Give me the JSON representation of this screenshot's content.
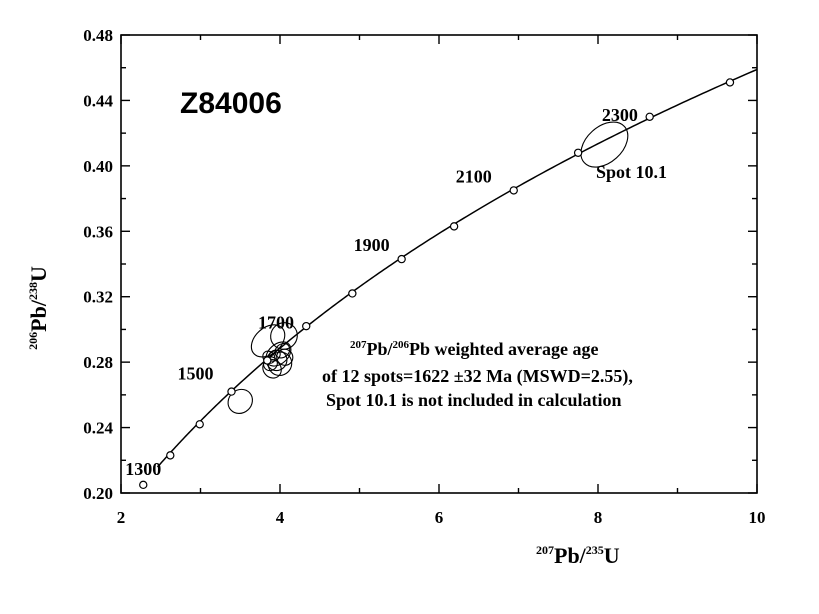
{
  "chart_data": {
    "type": "scatter",
    "title": "Z84006",
    "xlabel": {
      "sup": "207",
      "main": "Pb/",
      "sup2": "235",
      "main2": "U"
    },
    "ylabel": {
      "sup": "206",
      "main": "Pb/",
      "sup2": "238",
      "main2": "U"
    },
    "xlim": [
      2,
      10
    ],
    "ylim": [
      0.2,
      0.48
    ],
    "x_ticks": [
      "2",
      "4",
      "6",
      "8",
      "10"
    ],
    "y_ticks": [
      "0.20",
      "0.24",
      "0.28",
      "0.32",
      "0.36",
      "0.40",
      "0.44",
      "0.48"
    ],
    "grid": false,
    "concordia_markers": [
      {
        "x": 2.28,
        "y": 0.205
      },
      {
        "x": 2.62,
        "y": 0.223
      },
      {
        "x": 2.99,
        "y": 0.242
      },
      {
        "x": 3.39,
        "y": 0.262
      },
      {
        "x": 3.84,
        "y": 0.281
      },
      {
        "x": 4.33,
        "y": 0.302
      },
      {
        "x": 4.91,
        "y": 0.322
      },
      {
        "x": 5.53,
        "y": 0.343
      },
      {
        "x": 6.19,
        "y": 0.363
      },
      {
        "x": 6.94,
        "y": 0.385
      },
      {
        "x": 7.75,
        "y": 0.408
      },
      {
        "x": 8.65,
        "y": 0.43
      },
      {
        "x": 9.66,
        "y": 0.451
      }
    ],
    "concordia_age_labels": [
      {
        "text": "1300",
        "x": 2.28,
        "y": 0.205
      },
      {
        "text": "1500",
        "x": 3.39,
        "y": 0.262
      },
      {
        "text": "1700",
        "x": 4.05,
        "y": 0.292
      },
      {
        "text": "1900",
        "x": 5.53,
        "y": 0.343
      },
      {
        "text": "2100",
        "x": 6.94,
        "y": 0.385
      },
      {
        "text": "2300",
        "x": 8.2,
        "y": 0.419
      }
    ],
    "error_ellipses": [
      {
        "x": 3.5,
        "y": 0.256,
        "rx": 0.16,
        "ry": 0.007
      },
      {
        "x": 3.85,
        "y": 0.293,
        "rx": 0.24,
        "ry": 0.008
      },
      {
        "x": 4.05,
        "y": 0.296,
        "rx": 0.17,
        "ry": 0.008
      },
      {
        "x": 3.98,
        "y": 0.285,
        "rx": 0.18,
        "ry": 0.006
      },
      {
        "x": 3.88,
        "y": 0.279,
        "rx": 0.09,
        "ry": 0.004
      },
      {
        "x": 3.96,
        "y": 0.281,
        "rx": 0.13,
        "ry": 0.006
      },
      {
        "x": 4.03,
        "y": 0.287,
        "rx": 0.1,
        "ry": 0.004
      },
      {
        "x": 3.9,
        "y": 0.276,
        "rx": 0.11,
        "ry": 0.006
      },
      {
        "x": 4.0,
        "y": 0.279,
        "rx": 0.15,
        "ry": 0.007
      },
      {
        "x": 3.93,
        "y": 0.284,
        "rx": 0.08,
        "ry": 0.003
      },
      {
        "x": 4.06,
        "y": 0.283,
        "rx": 0.1,
        "ry": 0.005
      },
      {
        "x": 3.86,
        "y": 0.283,
        "rx": 0.07,
        "ry": 0.004
      },
      {
        "x": 8.08,
        "y": 0.413,
        "rx": 0.34,
        "ry": 0.011
      }
    ],
    "spot_label": "Spot 10.1",
    "annotation": {
      "line1_sup1": "207",
      "line1_pb": "Pb/",
      "line1_sup2": "206",
      "line1_rest": "Pb  weighted average  age",
      "line2": "of 12 spots=1622 ±32 Ma (MSWD=2.55),",
      "line3": "Spot 10.1 is  not included in calculation"
    }
  }
}
